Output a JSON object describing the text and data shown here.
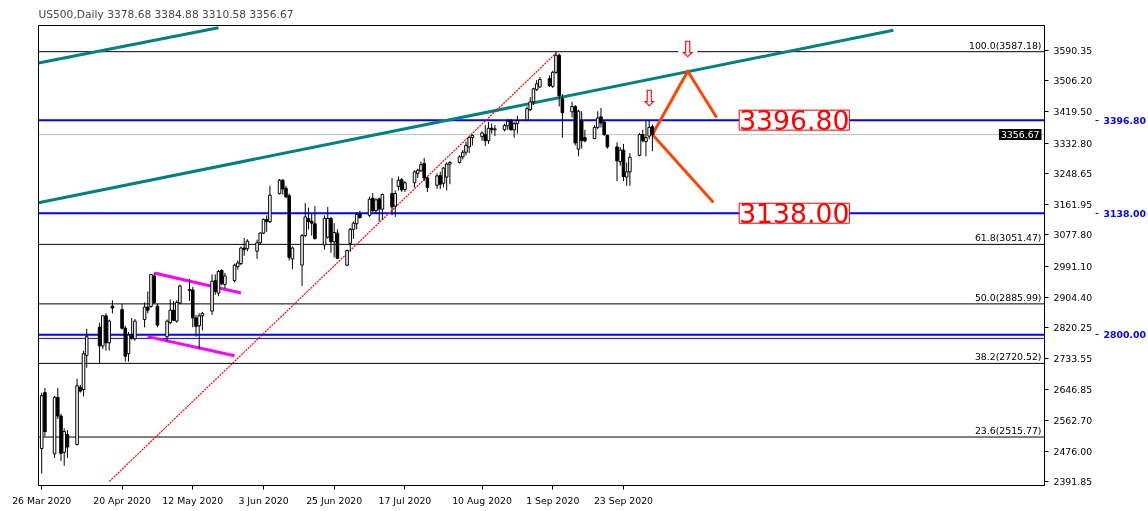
{
  "chart_data": {
    "type": "candlestick",
    "title": "US500,Daily  3378.68 3384.88 3310.58 3356.67",
    "x": [
      "2020-03-26",
      "2020-03-27",
      "2020-03-30",
      "2020-03-31",
      "2020-04-01",
      "2020-04-02",
      "2020-04-03",
      "2020-04-06",
      "2020-04-07",
      "2020-04-08",
      "2020-04-09",
      "2020-04-13",
      "2020-04-14",
      "2020-04-15",
      "2020-04-16",
      "2020-04-17",
      "2020-04-20",
      "2020-04-21",
      "2020-04-22",
      "2020-04-23",
      "2020-04-24",
      "2020-04-27",
      "2020-04-28",
      "2020-04-29",
      "2020-04-30",
      "2020-05-01",
      "2020-05-04",
      "2020-05-05",
      "2020-05-06",
      "2020-05-07",
      "2020-05-08",
      "2020-05-11",
      "2020-05-12",
      "2020-05-13",
      "2020-05-14",
      "2020-05-15",
      "2020-05-18",
      "2020-05-19",
      "2020-05-20",
      "2020-05-21",
      "2020-05-22",
      "2020-05-25",
      "2020-05-26",
      "2020-05-27",
      "2020-05-28",
      "2020-05-29",
      "2020-06-01",
      "2020-06-02",
      "2020-06-03",
      "2020-06-04",
      "2020-06-05",
      "2020-06-08",
      "2020-06-09",
      "2020-06-10",
      "2020-06-11",
      "2020-06-12",
      "2020-06-15",
      "2020-06-16",
      "2020-06-17",
      "2020-06-18",
      "2020-06-19",
      "2020-06-22",
      "2020-06-23",
      "2020-06-24",
      "2020-06-25",
      "2020-06-26",
      "2020-06-29",
      "2020-06-30",
      "2020-07-01",
      "2020-07-02",
      "2020-07-03",
      "2020-07-06",
      "2020-07-07",
      "2020-07-08",
      "2020-07-09",
      "2020-07-10",
      "2020-07-13",
      "2020-07-14",
      "2020-07-15",
      "2020-07-16",
      "2020-07-17",
      "2020-07-20",
      "2020-07-21",
      "2020-07-22",
      "2020-07-23",
      "2020-07-24",
      "2020-07-27",
      "2020-07-28",
      "2020-07-29",
      "2020-07-30",
      "2020-07-31",
      "2020-08-03",
      "2020-08-04",
      "2020-08-05",
      "2020-08-06",
      "2020-08-07",
      "2020-08-10",
      "2020-08-11",
      "2020-08-12",
      "2020-08-13",
      "2020-08-14",
      "2020-08-17",
      "2020-08-18",
      "2020-08-19",
      "2020-08-20",
      "2020-08-21",
      "2020-08-24",
      "2020-08-25",
      "2020-08-26",
      "2020-08-27",
      "2020-08-28",
      "2020-08-31",
      "2020-09-01",
      "2020-09-02",
      "2020-09-03",
      "2020-09-04",
      "2020-09-07",
      "2020-09-08",
      "2020-09-09",
      "2020-09-10",
      "2020-09-11",
      "2020-09-14",
      "2020-09-15",
      "2020-09-16",
      "2020-09-17",
      "2020-09-18",
      "2020-09-21",
      "2020-09-22",
      "2020-09-23",
      "2020-09-24",
      "2020-09-25",
      "2020-09-28",
      "2020-09-29",
      "2020-09-30",
      "2020-10-01",
      "2020-10-02"
    ],
    "ohlc": [
      [
        2483.6,
        2639.2,
        2414.4,
        2630.6
      ],
      [
        2639.2,
        2652.2,
        2518.1,
        2531.1
      ],
      [
        2468.9,
        2630.6,
        2457.6,
        2626.2
      ],
      [
        2626.2,
        2652.2,
        2565.7,
        2574.3
      ],
      [
        2574.3,
        2580.0,
        2449.0,
        2470.6
      ],
      [
        2473.2,
        2539.8,
        2436.0,
        2531.1
      ],
      [
        2522.5,
        2535.4,
        2457.6,
        2487.9
      ],
      [
        2494.8,
        2678.1,
        2492.2,
        2658.2
      ],
      [
        2653.9,
        2660.8,
        2639.2,
        2643.5
      ],
      [
        2647.8,
        2755.9,
        2628.8,
        2747.3
      ],
      [
        2743.0,
        2816.5,
        2708.4,
        2794.8
      ],
      [
        2820.8,
        2833.8,
        2721.3,
        2768.9
      ],
      [
        2768.9,
        2852.8,
        2760.3,
        2852.8
      ],
      [
        2852.8,
        2859.7,
        2755.9,
        2777.6
      ],
      [
        2777.6,
        2842.4,
        2755.9,
        2838.1
      ],
      [
        2879.6,
        2896.0,
        2859.7,
        2874.4
      ],
      [
        2870.1,
        2885.6,
        2814.7,
        2818.2
      ],
      [
        2818.2,
        2825.1,
        2725.7,
        2740.4
      ],
      [
        2747.3,
        2807.8,
        2725.7,
        2799.2
      ],
      [
        2797.4,
        2846.7,
        2786.2,
        2790.5
      ],
      [
        2788.8,
        2844.1,
        2783.6,
        2838.1
      ],
      [
        2842.4,
        2890.0,
        2820.8,
        2877.0
      ],
      [
        2877.0,
        2920.2,
        2859.7,
        2868.3
      ],
      [
        2878.7,
        2967.8,
        2875.3,
        2967.8
      ],
      [
        2963.5,
        2972.1,
        2885.6,
        2890.0
      ],
      [
        2879.6,
        2885.6,
        2820.8,
        2826.8
      ],
      [
        2794.8,
        2842.4,
        2781.9,
        2838.1
      ],
      [
        2833.8,
        2898.6,
        2829.4,
        2868.3
      ],
      [
        2868.3,
        2894.3,
        2838.1,
        2840.7
      ],
      [
        2838.1,
        2896.0,
        2833.8,
        2890.0
      ],
      [
        2888.2,
        2939.3,
        2885.6,
        2935.8
      ],
      [
        2922.8,
        2954.8,
        2894.3,
        2926.3
      ],
      [
        2924.6,
        2933.2,
        2820.8,
        2846.7
      ],
      [
        2846.7,
        2855.4,
        2794.8,
        2823.4
      ],
      [
        2825.1,
        2859.7,
        2760.3,
        2852.8
      ],
      [
        2852.8,
        2864.0,
        2812.1,
        2859.7
      ],
      [
        2865.8,
        2967.8,
        2855.4,
        2948.8
      ],
      [
        2950.5,
        2967.8,
        2911.5,
        2920.2
      ],
      [
        2915.9,
        2980.7,
        2907.2,
        2976.4
      ],
      [
        2979.0,
        2982.5,
        2937.5,
        2941.8
      ],
      [
        2940.1,
        2972.1,
        2928.8,
        2963.4
      ],
      [
        2950.5,
        2998.0,
        2946.1,
        2993.7
      ],
      [
        2989.4,
        3006.7,
        2980.7,
        2999.7
      ],
      [
        2998.0,
        3045.6,
        2993.7,
        3041.3
      ],
      [
        3041.3,
        3068.9,
        3019.6,
        3036.9
      ],
      [
        3039.5,
        3065.5,
        3032.6,
        3060.3
      ],
      [
        3032.6,
        3064.6,
        3011.0,
        3056.0
      ],
      [
        3056.0,
        3084.5,
        3049.9,
        3082.8
      ],
      [
        3082.8,
        3123.4,
        3080.2,
        3120.8
      ],
      [
        3120.8,
        3132.0,
        3086.2,
        3114.8
      ],
      [
        3114.8,
        3214.2,
        3110.4,
        3188.3
      ],
      [
        3192.6,
        3233.2,
        3190.0,
        3229.8
      ],
      [
        3229.8,
        3233.2,
        3190.0,
        3205.5
      ],
      [
        3207.3,
        3214.2,
        3179.6,
        3183.9
      ],
      [
        3186.5,
        3192.6,
        3006.7,
        3015.3
      ],
      [
        3011.0,
        3045.6,
        2982.5,
        3041.3
      ],
      [
        2993.7,
        3080.2,
        2935.8,
        3075.8
      ],
      [
        3075.8,
        3166.6,
        3071.5,
        3127.7
      ],
      [
        3123.4,
        3153.7,
        3093.1,
        3114.8
      ],
      [
        3115.6,
        3136.4,
        3075.8,
        3110.4
      ],
      [
        3108.7,
        3158.0,
        3065.5,
        3067.2
      ],
      [
        3049.9,
        3132.0,
        3036.9,
        3123.4
      ],
      [
        3071.5,
        3155.4,
        3067.2,
        3123.4
      ],
      [
        3123.4,
        3127.7,
        3028.3,
        3058.5
      ],
      [
        3058.5,
        3110.4,
        3015.3,
        3084.5
      ],
      [
        3082.8,
        3093.1,
        3011.0,
        3012.7
      ],
      [
        2993.7,
        3036.9,
        2991.1,
        3034.3
      ],
      [
        3054.2,
        3097.5,
        3030.9,
        3093.1
      ],
      [
        3093.1,
        3114.8,
        3067.2,
        3110.4
      ],
      [
        3108.7,
        3140.7,
        3093.1,
        3134.6
      ],
      [
        3134.6,
        3145.0,
        3123.4,
        3126.0
      ],
      [
        3132.0,
        3183.9,
        3127.7,
        3177.0
      ],
      [
        3179.7,
        3194.4,
        3140.7,
        3145.1
      ],
      [
        3145.1,
        3179.7,
        3136.4,
        3175.3
      ],
      [
        3177.9,
        3181.4,
        3114.8,
        3149.4
      ],
      [
        3149.4,
        3192.6,
        3119.1,
        3190.0
      ],
      [
        3192.6,
        3235.9,
        3132.1,
        3155.4
      ],
      [
        3158.0,
        3201.3,
        3127.8,
        3192.6
      ],
      [
        3212.5,
        3240.2,
        3201.3,
        3229.8
      ],
      [
        3231.5,
        3235.9,
        3197.0,
        3203.0
      ],
      [
        3203.9,
        3227.2,
        3197.0,
        3222.9
      ],
      [
        3222.9,
        3257.5,
        3209.9,
        3253.2
      ],
      [
        3248.8,
        3261.8,
        3235.9,
        3257.5
      ],
      [
        3255.8,
        3281.7,
        3253.2,
        3273.0
      ],
      [
        3276.5,
        3292.1,
        3227.2,
        3235.9
      ],
      [
        3235.9,
        3240.2,
        3197.0,
        3209.9
      ],
      [
        3215.9,
        3248.8,
        3205.6,
        3241.9
      ],
      [
        3242.8,
        3253.2,
        3205.6,
        3218.6
      ],
      [
        3221.2,
        3266.1,
        3209.9,
        3263.5
      ],
      [
        3238.5,
        3279.1,
        3201.3,
        3274.8
      ],
      [
        3274.8,
        3283.4,
        3218.6,
        3279.1
      ],
      [
        3279.1,
        3299.0,
        3276.5,
        3294.7
      ],
      [
        3294.7,
        3313.7,
        3287.7,
        3307.6
      ],
      [
        3307.6,
        3337.0,
        3299.0,
        3326.7
      ],
      [
        3322.3,
        3350.9,
        3305.0,
        3348.3
      ],
      [
        3348.3,
        3356.9,
        3326.7,
        3354.3
      ],
      [
        3350.9,
        3365.6,
        3339.6,
        3361.2
      ],
      [
        3356.9,
        3382.9,
        3324.9,
        3339.6
      ],
      [
        3339.6,
        3391.5,
        3331.0,
        3374.2
      ],
      [
        3374.2,
        3387.2,
        3359.5,
        3369.9
      ],
      [
        3369.9,
        3382.9,
        3352.6,
        3372.5
      ],
      [
        3369.9,
        3387.2,
        3365.6,
        3382.0
      ],
      [
        3381.1,
        3400.2,
        3369.9,
        3393.2
      ],
      [
        3395.8,
        3400.2,
        3368.2,
        3369.9
      ],
      [
        3369.9,
        3391.5,
        3348.3,
        3387.2
      ],
      [
        3387.2,
        3408.8,
        3359.5,
        3395.8
      ],
      [
        3397.6,
        3434.7,
        3395.8,
        3428.7
      ],
      [
        3426.0,
        3460.6,
        3421.7,
        3447.7
      ],
      [
        3447.7,
        3486.6,
        3439.0,
        3484.0
      ],
      [
        3482.2,
        3508.2,
        3477.9,
        3497.8
      ],
      [
        3489.2,
        3516.8,
        3486.6,
        3509.9
      ],
      [
        3512.5,
        3521.2,
        3489.2,
        3492.6
      ],
      [
        3490.9,
        3534.1,
        3486.6,
        3529.8
      ],
      [
        3529.8,
        3587.2,
        3525.5,
        3577.4
      ],
      [
        3577.4,
        3581.7,
        3434.7,
        3464.9
      ],
      [
        3456.3,
        3469.3,
        3348.2,
        3417.4
      ],
      [
        3420.0,
        3447.7,
        3404.4,
        3434.7
      ],
      [
        3434.7,
        3439.0,
        3326.6,
        3333.5
      ],
      [
        3316.2,
        3426.0,
        3296.3,
        3421.7
      ],
      [
        3395.8,
        3421.7,
        3317.9,
        3339.6
      ],
      [
        3348.2,
        3369.8,
        3335.2,
        3339.6
      ],
      [
        3345.6,
        3382.8,
        3343.9,
        3376.7
      ],
      [
        3376.7,
        3421.7,
        3371.6,
        3402.7
      ],
      [
        3406.1,
        3430.4,
        3376.7,
        3388.9
      ],
      [
        3391.4,
        3395.8,
        3352.5,
        3356.9
      ],
      [
        3354.3,
        3356.9,
        3317.9,
        3322.3
      ],
      [
        3322.3,
        3335.2,
        3227.2,
        3283.4
      ],
      [
        3281.6,
        3322.3,
        3270.4,
        3313.6
      ],
      [
        3313.6,
        3330.9,
        3227.2,
        3240.1
      ],
      [
        3238.4,
        3279.0,
        3214.2,
        3253.1
      ],
      [
        3253.1,
        3305.0,
        3214.2,
        3293.7
      ],
      [
        3298.9,
        3361.2,
        3296.3,
        3356.9
      ],
      [
        3356.9,
        3369.8,
        3335.2,
        3339.6
      ],
      [
        3337.0,
        3395.8,
        3296.3,
        3348.2
      ],
      [
        3352.5,
        3397.5,
        3343.9,
        3376.7
      ],
      [
        3378.68,
        3384.88,
        3310.58,
        3356.67
      ]
    ],
    "series": [
      {
        "type": "line",
        "color": "#008080",
        "x": [
          "2020-03-25",
          "2020-05-20"
        ],
        "values": [
          3556,
          3654
        ]
      },
      {
        "type": "line",
        "color": "#008080",
        "x": [
          "2020-03-25",
          "2020-12-16"
        ],
        "values": [
          3167,
          3647
        ]
      },
      {
        "type": "line",
        "color": "#ff00ff",
        "x": [
          "2020-04-30",
          "2020-05-27"
        ],
        "values": [
          2972,
          2916
        ]
      },
      {
        "type": "line",
        "color": "#ff00ff",
        "x": [
          "2020-04-28",
          "2020-05-25"
        ],
        "values": [
          2795,
          2742
        ]
      },
      {
        "type": "line",
        "color": "#ff0000",
        "line_style": "dotted",
        "x": [
          "2020-04-16",
          "2020-09-02"
        ],
        "values": [
          2392,
          3583
        ]
      },
      {
        "type": "line",
        "color": "#ff4500",
        "x": [
          "2020-10-02",
          "2020-10-13",
          "2020-10-22"
        ],
        "values": [
          3357,
          3533,
          3404
        ]
      },
      {
        "type": "line",
        "color": "#ff4500",
        "x": [
          "2020-10-02",
          "2020-10-21"
        ],
        "values": [
          3357,
          3168
        ]
      }
    ],
    "ref_lines": [
      {
        "axis": "y",
        "value": 3587.18,
        "label": "100.0(3587.18)",
        "color": "#000000"
      },
      {
        "axis": "y",
        "value": 3051.47,
        "label": "61.8(3051.47)",
        "color": "#000000"
      },
      {
        "axis": "y",
        "value": 2885.99,
        "label": "50.0(2885.99)",
        "color": "#000000"
      },
      {
        "axis": "y",
        "value": 2720.52,
        "label": "38.2(2720.52)",
        "color": "#000000"
      },
      {
        "axis": "y",
        "value": 2515.77,
        "label": "23.6(2515.77)",
        "color": "#000000"
      },
      {
        "axis": "y",
        "value": 3356.67,
        "label": "3356.67",
        "color": "#c0c0c0"
      },
      {
        "axis": "y",
        "value": 2790,
        "color": "#0000ff"
      },
      {
        "axis": "y",
        "value": 3396.8,
        "label": "3396.80",
        "color": "#0000ff"
      },
      {
        "axis": "y",
        "value": 3138.0,
        "label": "3138.00",
        "color": "#0000ff"
      },
      {
        "axis": "y",
        "value": 2800.0,
        "label": "2800.00",
        "color": "#0000ff"
      }
    ],
    "annotations": [
      {
        "text": "3396.80",
        "x": "2020-10-29",
        "y": 3396.8
      },
      {
        "text": "3138.00",
        "x": "2020-10-29",
        "y": 3138.0
      },
      {
        "text": "⇩",
        "x": "2020-10-13",
        "y": 3533
      },
      {
        "text": "⇩",
        "x": "2020-10-01",
        "y": 3397.5
      }
    ],
    "xlim": [
      "2020-03-25",
      "2021-02-01"
    ],
    "ylim": [
      2381,
      3660
    ],
    "xticks": [
      {
        "value": "2020-03-26",
        "label": "26 Mar 2020"
      },
      {
        "value": "2020-04-20",
        "label": "20 Apr 2020"
      },
      {
        "value": "2020-05-12",
        "label": "12 May 2020"
      },
      {
        "value": "2020-06-03",
        "label": "3 Jun 2020"
      },
      {
        "value": "2020-06-25",
        "label": "25 Jun 2020"
      },
      {
        "value": "2020-07-17",
        "label": "17 Jul 2020"
      },
      {
        "value": "2020-08-10",
        "label": "10 Aug 2020"
      },
      {
        "value": "2020-09-01",
        "label": "1 Sep 2020"
      },
      {
        "value": "2020-09-23",
        "label": "23 Sep 2020"
      }
    ],
    "yticks": [
      3590.35,
      {
        "value": 3506.2,
        "label": "3506.20"
      },
      {
        "value": 3419.5,
        "label": "3419.50"
      },
      {
        "value": 3332.8,
        "label": "3332.80"
      },
      3248.65,
      3161.95,
      {
        "value": 3077.8,
        "label": "3077.80"
      },
      {
        "value": 2991.1,
        "label": "2991.10"
      },
      {
        "value": 2904.4,
        "label": "2904.40"
      },
      2820.25,
      2733.55,
      2646.85,
      {
        "value": 2562.7,
        "label": "2562.70"
      },
      {
        "value": 2476.0,
        "label": "2476.00"
      },
      2391.85
    ]
  }
}
